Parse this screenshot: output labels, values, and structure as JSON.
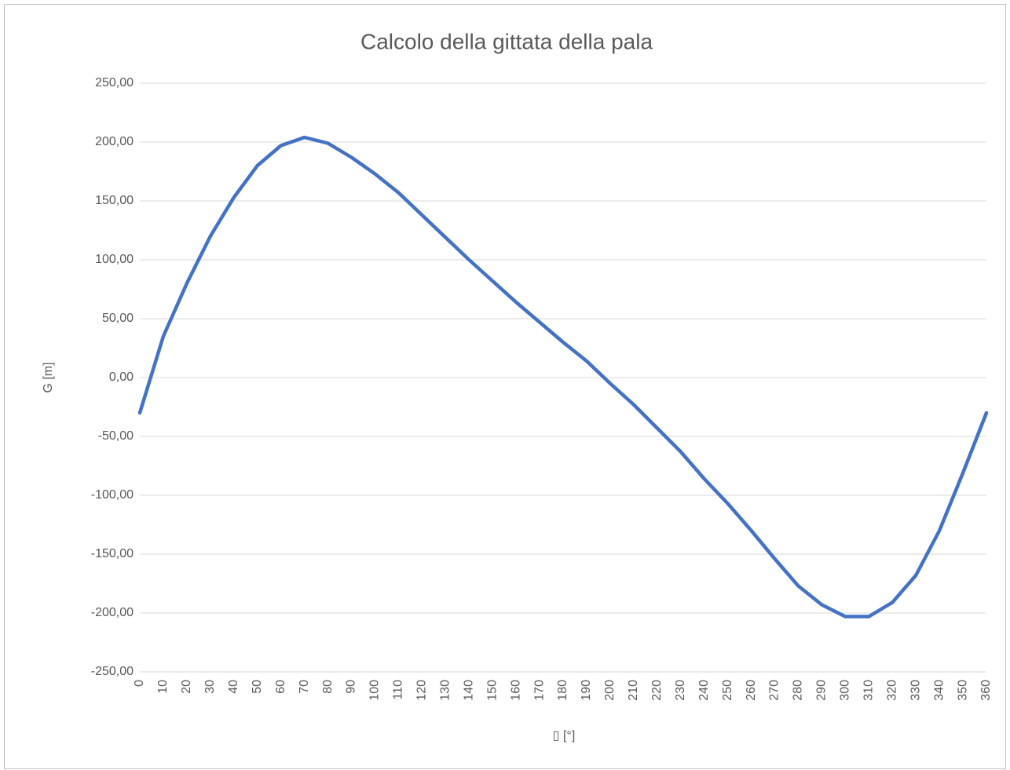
{
  "chart_data": {
    "type": "line",
    "title": "Calcolo della gittata della pala",
    "x_label": "▯ [°]",
    "y_label": "G [m]",
    "x": [
      0,
      10,
      20,
      30,
      40,
      50,
      60,
      70,
      80,
      90,
      100,
      110,
      120,
      130,
      140,
      150,
      160,
      170,
      180,
      190,
      200,
      210,
      220,
      230,
      240,
      250,
      260,
      270,
      280,
      290,
      300,
      310,
      320,
      330,
      340,
      350,
      360
    ],
    "series": [
      {
        "name": "G",
        "color": "#4472c4",
        "values": [
          -30,
          35,
          80,
          120,
          153,
          180,
          197,
          204,
          199,
          187,
          173,
          157,
          138,
          119,
          100,
          82,
          64,
          47,
          30,
          14,
          -5,
          -23,
          -43,
          -63,
          -86,
          -107,
          -130,
          -154,
          -177,
          -193,
          -203,
          -203,
          -191,
          -168,
          -130,
          -81,
          -30
        ]
      }
    ],
    "xlim": [
      0,
      360
    ],
    "xticks": [
      0,
      10,
      20,
      30,
      40,
      50,
      60,
      70,
      80,
      90,
      100,
      110,
      120,
      130,
      140,
      150,
      160,
      170,
      180,
      190,
      200,
      210,
      220,
      230,
      240,
      250,
      260,
      270,
      280,
      290,
      300,
      310,
      320,
      330,
      340,
      350,
      360
    ],
    "ylim": [
      -250,
      250
    ],
    "yticks": [
      {
        "value": -250,
        "label": "-250,00"
      },
      {
        "value": -200,
        "label": "-200,00"
      },
      {
        "value": -150,
        "label": "-150,00"
      },
      {
        "value": -100,
        "label": "-100,00"
      },
      {
        "value": -50,
        "label": "-50,00"
      },
      {
        "value": 0,
        "label": "0,00"
      },
      {
        "value": 50,
        "label": "50,00"
      },
      {
        "value": 100,
        "label": "100,00"
      },
      {
        "value": 150,
        "label": "150,00"
      },
      {
        "value": 200,
        "label": "200,00"
      },
      {
        "value": 250,
        "label": "250,00"
      }
    ],
    "grid": true
  }
}
